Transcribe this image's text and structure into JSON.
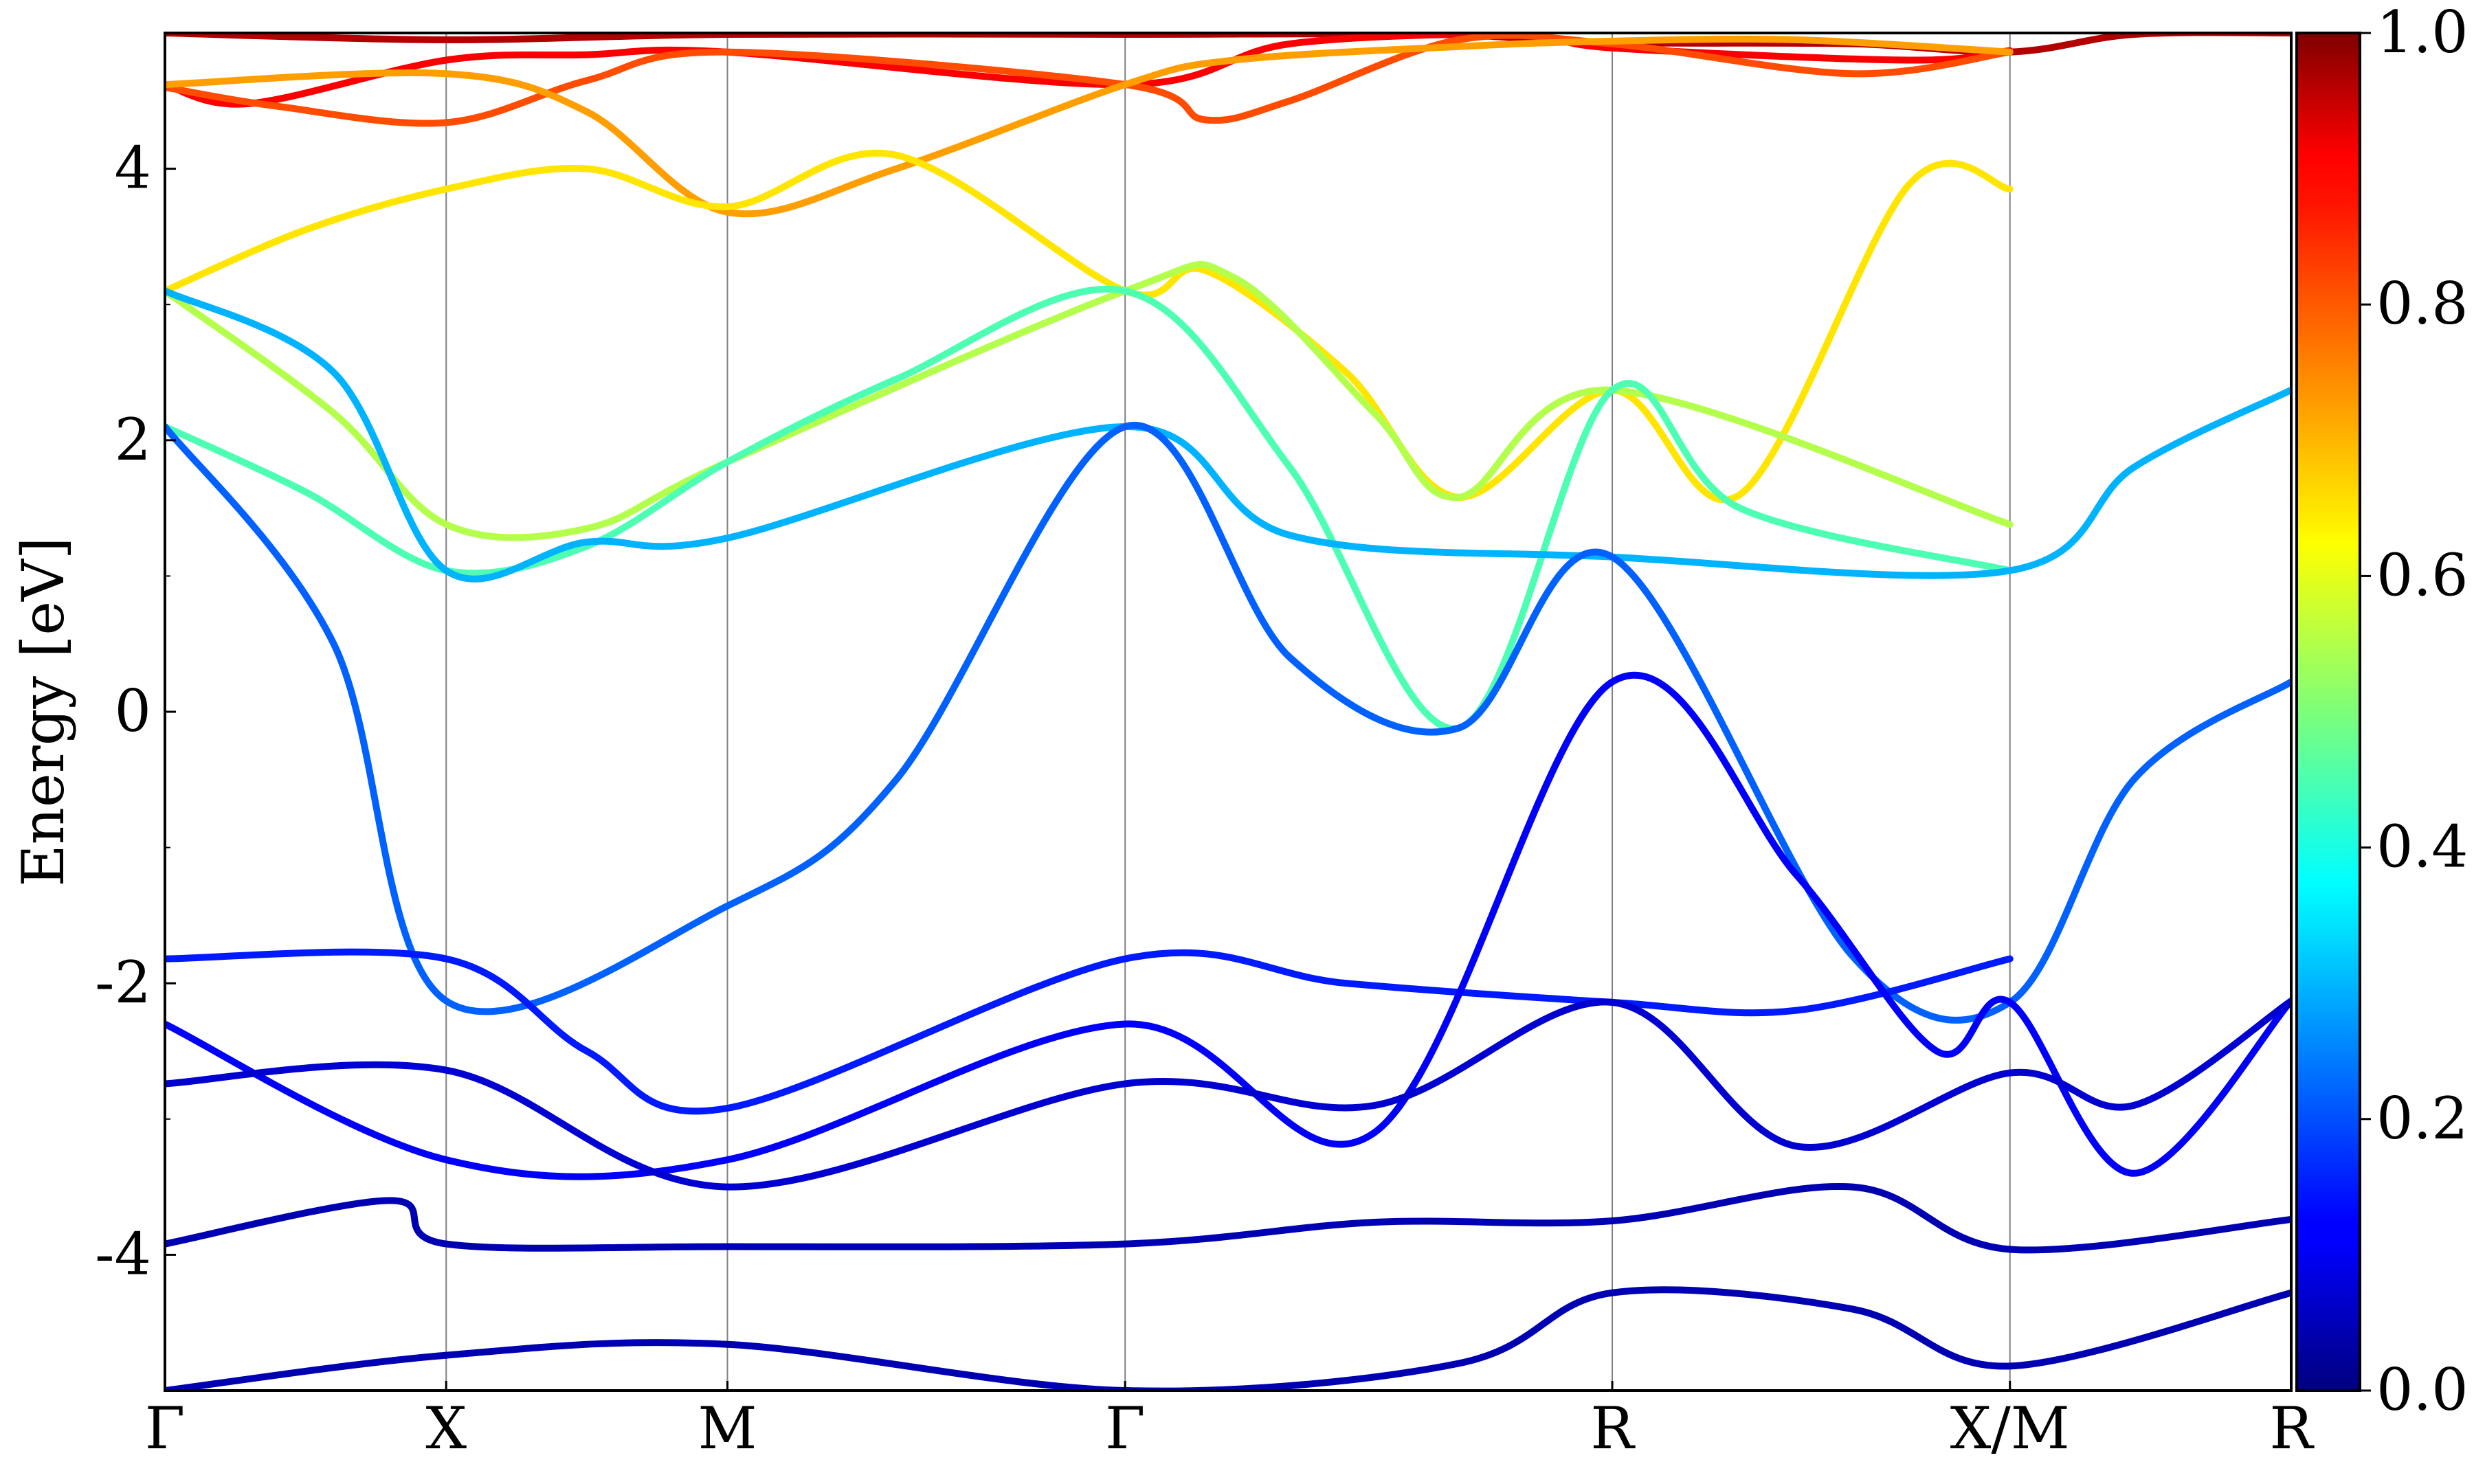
{
  "chart_data": {
    "type": "line",
    "title": "",
    "xlabel": "",
    "ylabel": "Energy [eV]",
    "ylim": [
      -5,
      5
    ],
    "y_ticks": [
      {
        "value": 4,
        "label": "4"
      },
      {
        "value": 2,
        "label": "2"
      },
      {
        "value": 0,
        "label": "0"
      },
      {
        "value": -2,
        "label": "-2"
      },
      {
        "value": -4,
        "label": "-4"
      }
    ],
    "x_ticks": [
      {
        "value": 0.0,
        "label": "Γ"
      },
      {
        "value": 1.0,
        "label": "X"
      },
      {
        "value": 2.0,
        "label": "M"
      },
      {
        "value": 3.414,
        "label": "Γ"
      },
      {
        "value": 5.146,
        "label": "R"
      },
      {
        "value": 6.56,
        "label": "X/M"
      },
      {
        "value": 7.56,
        "label": "R"
      }
    ],
    "xlim": [
      0,
      7.56
    ],
    "grid": "vertical lines at high-symmetry points",
    "colormap": "jet",
    "colorbar": {
      "range": [
        0.0,
        1.0
      ],
      "ticks": [
        {
          "value": 1.0,
          "label": "1.0"
        },
        {
          "value": 0.8,
          "label": "0.8"
        },
        {
          "value": 0.6,
          "label": "0.6"
        },
        {
          "value": 0.4,
          "label": "0.4"
        },
        {
          "value": 0.2,
          "label": "0.2"
        },
        {
          "value": 0.0,
          "label": "0.0"
        }
      ]
    },
    "series": [
      {
        "weight": 0.95,
        "points": [
          [
            0,
            5.0
          ],
          [
            1.0,
            4.95
          ],
          [
            2.0,
            4.99
          ],
          [
            3.414,
            4.99
          ],
          [
            4.5,
            4.99
          ],
          [
            5.146,
            4.93
          ],
          [
            6.0,
            4.92
          ],
          [
            6.56,
            4.86
          ],
          [
            7.0,
            4.99
          ],
          [
            7.56,
            5.0
          ]
        ]
      },
      {
        "weight": 0.88,
        "points": [
          [
            0,
            4.62
          ],
          [
            0.3,
            4.48
          ],
          [
            1.0,
            4.8
          ],
          [
            1.5,
            4.84
          ],
          [
            2.0,
            4.86
          ],
          [
            3.414,
            4.62
          ],
          [
            4.0,
            4.92
          ],
          [
            4.8,
            4.99
          ],
          [
            5.146,
            4.89
          ],
          [
            6.2,
            4.8
          ],
          [
            6.56,
            4.87
          ]
        ]
      },
      {
        "weight": 0.8,
        "points": [
          [
            0,
            4.6
          ],
          [
            0.4,
            4.46
          ],
          [
            1.0,
            4.34
          ],
          [
            1.5,
            4.65
          ],
          [
            2.0,
            4.86
          ],
          [
            3.414,
            4.62
          ],
          [
            3.7,
            4.36
          ],
          [
            4.0,
            4.5
          ],
          [
            4.6,
            4.95
          ],
          [
            5.146,
            4.92
          ],
          [
            6.0,
            4.7
          ],
          [
            6.56,
            4.86
          ]
        ]
      },
      {
        "weight": 0.72,
        "points": [
          [
            0,
            4.62
          ],
          [
            1.0,
            4.7
          ],
          [
            1.5,
            4.42
          ],
          [
            2.0,
            3.68
          ],
          [
            2.6,
            4.0
          ],
          [
            3.414,
            4.62
          ],
          [
            3.8,
            4.8
          ],
          [
            4.6,
            4.9
          ],
          [
            5.146,
            4.94
          ],
          [
            5.8,
            4.95
          ],
          [
            6.56,
            4.86
          ]
        ]
      },
      {
        "weight": 0.65,
        "points": [
          [
            0,
            3.1
          ],
          [
            0.5,
            3.55
          ],
          [
            1.0,
            3.85
          ],
          [
            1.5,
            4.0
          ],
          [
            2.0,
            3.72
          ],
          [
            2.6,
            4.1
          ],
          [
            3.414,
            3.1
          ],
          [
            3.7,
            3.25
          ],
          [
            4.2,
            2.5
          ],
          [
            4.6,
            1.58
          ],
          [
            5.146,
            2.37
          ],
          [
            5.6,
            1.6
          ],
          [
            6.2,
            3.88
          ],
          [
            6.56,
            3.85
          ]
        ]
      },
      {
        "weight": 0.55,
        "points": [
          [
            0,
            3.1
          ],
          [
            0.6,
            2.2
          ],
          [
            1.0,
            1.38
          ],
          [
            1.5,
            1.35
          ],
          [
            2.0,
            1.84
          ],
          [
            3.414,
            3.1
          ],
          [
            3.8,
            3.2
          ],
          [
            4.3,
            2.2
          ],
          [
            4.6,
            1.58
          ],
          [
            5.146,
            2.37
          ],
          [
            6.56,
            1.38
          ]
        ]
      },
      {
        "weight": 0.45,
        "points": [
          [
            0,
            2.1
          ],
          [
            0.5,
            1.62
          ],
          [
            1.0,
            1.04
          ],
          [
            1.5,
            1.22
          ],
          [
            2.0,
            1.84
          ],
          [
            2.6,
            2.45
          ],
          [
            3.414,
            3.1
          ],
          [
            4.0,
            1.8
          ],
          [
            4.6,
            -0.12
          ],
          [
            5.146,
            2.37
          ],
          [
            5.6,
            1.5
          ],
          [
            6.56,
            1.04
          ]
        ]
      },
      {
        "weight": 0.3,
        "points": [
          [
            0,
            3.1
          ],
          [
            0.6,
            2.5
          ],
          [
            1.0,
            1.04
          ],
          [
            1.5,
            1.25
          ],
          [
            2.0,
            1.28
          ],
          [
            3.414,
            2.1
          ],
          [
            4.0,
            1.3
          ],
          [
            5.146,
            1.14
          ],
          [
            6.56,
            1.04
          ],
          [
            7.0,
            1.8
          ],
          [
            7.56,
            2.37
          ]
        ]
      },
      {
        "weight": 0.22,
        "points": [
          [
            0,
            2.1
          ],
          [
            0.6,
            0.5
          ],
          [
            1.0,
            -2.13
          ],
          [
            2.0,
            -1.43
          ],
          [
            2.6,
            -0.5
          ],
          [
            3.414,
            2.1
          ],
          [
            4.0,
            0.4
          ],
          [
            4.6,
            -0.12
          ],
          [
            5.146,
            1.14
          ],
          [
            6.0,
            -1.8
          ],
          [
            6.56,
            -2.14
          ],
          [
            7.0,
            -0.5
          ],
          [
            7.56,
            0.22
          ]
        ]
      },
      {
        "weight": 0.15,
        "points": [
          [
            0,
            -1.82
          ],
          [
            1.0,
            -1.82
          ],
          [
            1.5,
            -2.5
          ],
          [
            2.0,
            -2.92
          ],
          [
            3.414,
            -1.82
          ],
          [
            4.2,
            -2.0
          ],
          [
            5.146,
            -2.14
          ],
          [
            5.8,
            -2.2
          ],
          [
            6.56,
            -1.82
          ]
        ]
      },
      {
        "weight": 0.12,
        "points": [
          [
            0,
            -2.3
          ],
          [
            1.0,
            -3.3
          ],
          [
            2.0,
            -3.3
          ],
          [
            3.414,
            -2.3
          ],
          [
            4.3,
            -3.1
          ],
          [
            5.146,
            0.22
          ],
          [
            5.8,
            -1.2
          ],
          [
            6.3,
            -2.5
          ],
          [
            6.56,
            -2.14
          ],
          [
            7.0,
            -3.4
          ],
          [
            7.56,
            -2.13
          ]
        ]
      },
      {
        "weight": 0.08,
        "points": [
          [
            0,
            -2.74
          ],
          [
            1.0,
            -2.64
          ],
          [
            2.0,
            -3.5
          ],
          [
            3.414,
            -2.74
          ],
          [
            4.3,
            -2.9
          ],
          [
            5.146,
            -2.14
          ],
          [
            5.8,
            -3.2
          ],
          [
            6.56,
            -2.66
          ],
          [
            7.0,
            -2.9
          ],
          [
            7.56,
            -2.13
          ]
        ]
      },
      {
        "weight": 0.05,
        "points": [
          [
            0,
            -3.92
          ],
          [
            0.8,
            -3.6
          ],
          [
            1.0,
            -3.92
          ],
          [
            2.0,
            -3.94
          ],
          [
            3.414,
            -3.92
          ],
          [
            4.3,
            -3.76
          ],
          [
            5.146,
            -3.75
          ],
          [
            6.0,
            -3.5
          ],
          [
            6.56,
            -3.96
          ],
          [
            7.56,
            -3.74
          ]
        ]
      },
      {
        "weight": 0.05,
        "points": [
          [
            0,
            -5.0
          ],
          [
            1.0,
            -4.74
          ],
          [
            2.0,
            -4.66
          ],
          [
            3.414,
            -5.0
          ],
          [
            4.6,
            -4.8
          ],
          [
            5.146,
            -4.28
          ],
          [
            6.0,
            -4.4
          ],
          [
            6.56,
            -4.82
          ],
          [
            7.56,
            -4.28
          ]
        ]
      }
    ]
  }
}
